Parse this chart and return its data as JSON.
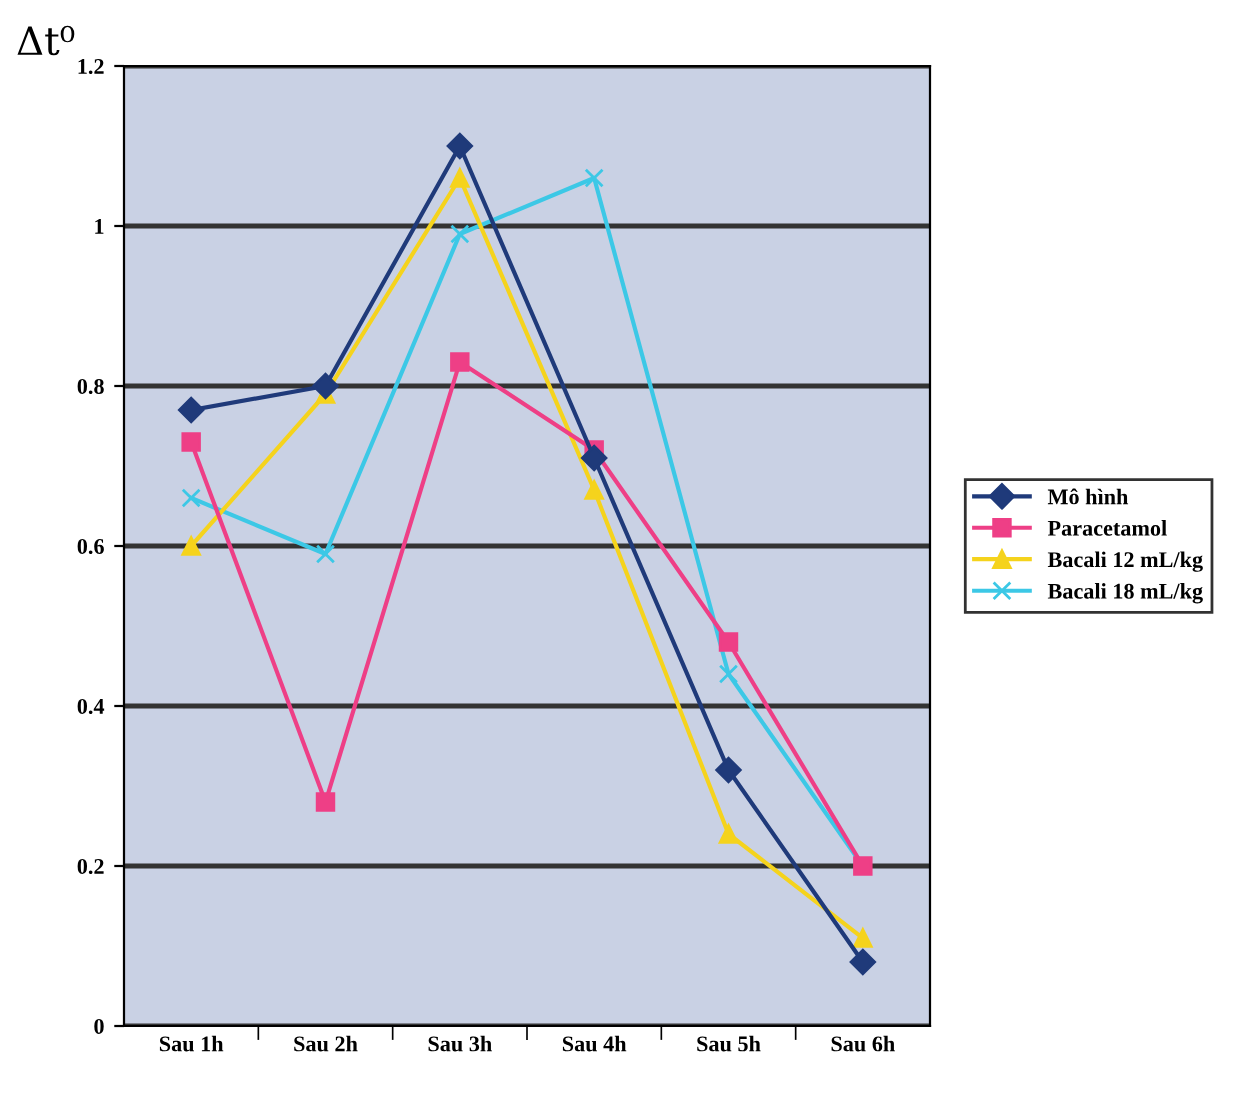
{
  "chart_data": {
    "type": "line",
    "ylabel": "Δt⁰",
    "categories": [
      "Sau 1h",
      "Sau 2h",
      "Sau 3h",
      "Sau 4h",
      "Sau 5h",
      "Sau 6h"
    ],
    "series": [
      {
        "name": "Mô hình",
        "color": "#1f3a7a",
        "marker": "diamond",
        "values": [
          0.77,
          0.8,
          1.1,
          0.71,
          0.32,
          0.08
        ]
      },
      {
        "name": "Paracetamol",
        "color": "#ee3f86",
        "marker": "square",
        "values": [
          0.73,
          0.28,
          0.83,
          0.72,
          0.48,
          0.2
        ]
      },
      {
        "name": "Bacali 12 mL/kg",
        "color": "#f5d31c",
        "marker": "triangle",
        "values": [
          0.6,
          0.79,
          1.06,
          0.67,
          0.24,
          0.11
        ]
      },
      {
        "name": "Bacali 18 mL/kg",
        "color": "#3cc8e6",
        "marker": "cross",
        "values": [
          0.66,
          0.59,
          0.99,
          1.06,
          0.44,
          0.2
        ]
      }
    ],
    "ylim": [
      0,
      1.2
    ],
    "yticks": [
      0,
      0.2,
      0.4,
      0.6,
      0.8,
      1,
      1.2
    ],
    "grid": "y",
    "legend": "right"
  }
}
